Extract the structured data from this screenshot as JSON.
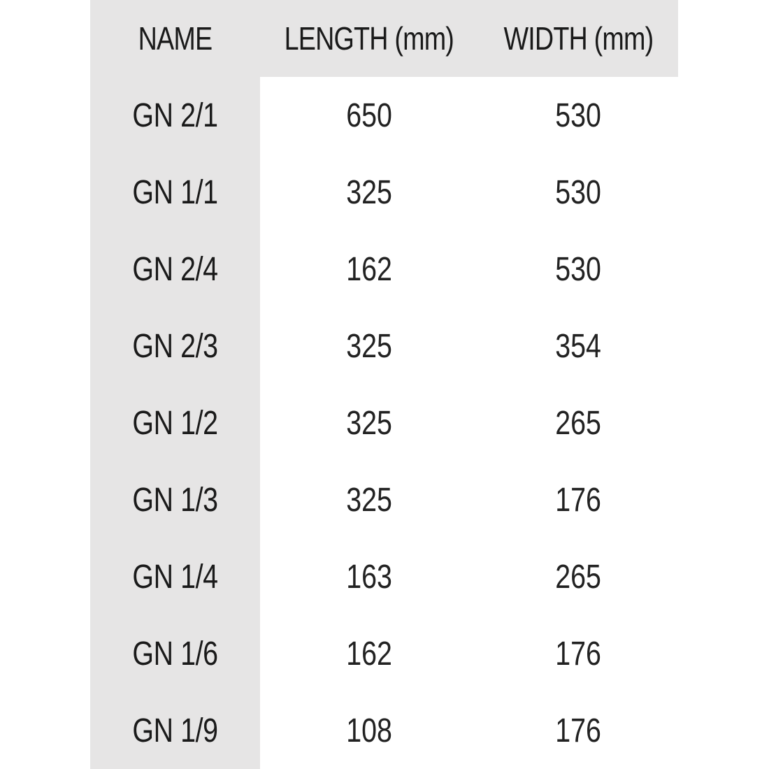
{
  "table": {
    "headers": [
      "NAME",
      "LENGTH (mm)",
      "WIDTH (mm)"
    ],
    "rows": [
      [
        "GN 2/1",
        "650",
        "530"
      ],
      [
        "GN 1/1",
        "325",
        "530"
      ],
      [
        "GN 2/4",
        "162",
        "530"
      ],
      [
        "GN 2/3",
        "325",
        "354"
      ],
      [
        "GN 1/2",
        "325",
        "265"
      ],
      [
        "GN 1/3",
        "325",
        "176"
      ],
      [
        "GN 1/4",
        "163",
        "265"
      ],
      [
        "GN 1/6",
        "162",
        "176"
      ],
      [
        "GN 1/9",
        "108",
        "176"
      ]
    ]
  },
  "colors": {
    "shade": "#e6e5e5",
    "text": "#1a1a1a",
    "background": "#ffffff"
  }
}
